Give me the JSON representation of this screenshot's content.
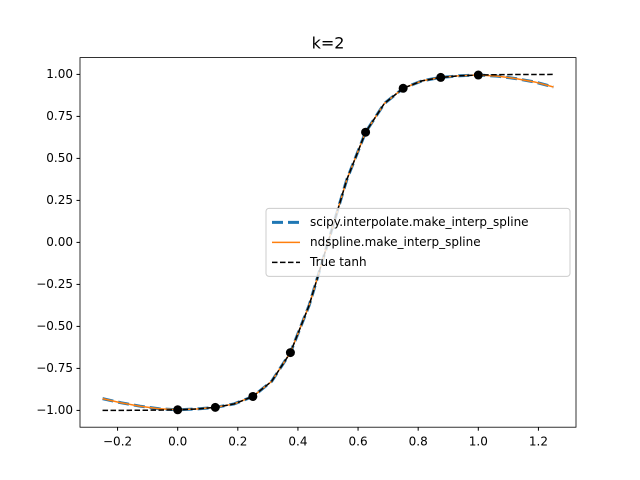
{
  "chart_data": {
    "type": "line",
    "title": "k=2",
    "x": [
      -0.25,
      -0.1875,
      -0.125,
      -0.0625,
      0,
      0.0625,
      0.125,
      0.1875,
      0.25,
      0.3125,
      0.375,
      0.4375,
      0.5,
      0.5625,
      0.625,
      0.6875,
      0.75,
      0.8125,
      0.875,
      0.9375,
      1,
      1.0625,
      1.125,
      1.1875,
      1.25
    ],
    "series": [
      {
        "name": "scipy.interpolate.make_interp_spline",
        "color": "#1f77b4",
        "style": "dashed",
        "width": 3,
        "values": [
          -0.93,
          -0.955,
          -0.975,
          -0.99,
          -0.9963,
          -0.9918,
          -0.982,
          -0.9615,
          -0.9172,
          -0.827,
          -0.6558,
          -0.3736,
          0,
          0.3736,
          0.6558,
          0.827,
          0.9172,
          0.9615,
          0.982,
          0.9918,
          0.9963,
          0.99,
          0.975,
          0.955,
          0.925
        ]
      },
      {
        "name": "ndspline.make_interp_spline",
        "color": "#ff7f0e",
        "style": "solid",
        "width": 1.5,
        "values": [
          -0.93,
          -0.955,
          -0.975,
          -0.99,
          -0.9963,
          -0.9918,
          -0.982,
          -0.9615,
          -0.9172,
          -0.827,
          -0.6558,
          -0.3736,
          0,
          0.3736,
          0.6558,
          0.827,
          0.9172,
          0.9615,
          0.982,
          0.9918,
          0.9963,
          0.99,
          0.975,
          0.955,
          0.925
        ]
      },
      {
        "name": "True tanh",
        "color": "#000000",
        "style": "dashed",
        "width": 1.5,
        "values": [
          -0.9998,
          -0.9996,
          -0.9992,
          -0.9983,
          -0.9963,
          -0.9918,
          -0.982,
          -0.9615,
          -0.9172,
          -0.827,
          -0.6558,
          -0.3736,
          0,
          0.3736,
          0.6558,
          0.827,
          0.9172,
          0.9615,
          0.982,
          0.9918,
          0.9963,
          0.9983,
          0.9992,
          0.9996,
          0.9998
        ]
      }
    ],
    "points": {
      "color": "#000000",
      "x": [
        0,
        0.125,
        0.25,
        0.375,
        0.625,
        0.75,
        0.875,
        1
      ],
      "y": [
        -0.9963,
        -0.982,
        -0.9172,
        -0.6558,
        0.6558,
        0.9172,
        0.982,
        0.9963
      ]
    },
    "xlim": [
      -0.325,
      1.325
    ],
    "ylim": [
      -1.1,
      1.1
    ],
    "xticks": [
      {
        "value": -0.2,
        "label": "−0.2"
      },
      {
        "value": 0,
        "label": "0.0"
      },
      {
        "value": 0.2,
        "label": "0.2"
      },
      {
        "value": 0.4,
        "label": "0.4"
      },
      {
        "value": 0.6,
        "label": "0.6"
      },
      {
        "value": 0.8,
        "label": "0.8"
      },
      {
        "value": 1,
        "label": "1.0"
      },
      {
        "value": 1.2,
        "label": "1.2"
      }
    ],
    "yticks": [
      {
        "value": -1,
        "label": "−1.00"
      },
      {
        "value": -0.75,
        "label": "−0.75"
      },
      {
        "value": -0.5,
        "label": "−0.50"
      },
      {
        "value": -0.25,
        "label": "−0.25"
      },
      {
        "value": 0,
        "label": "0.00"
      },
      {
        "value": 0.25,
        "label": "0.25"
      },
      {
        "value": 0.5,
        "label": "0.50"
      },
      {
        "value": 0.75,
        "label": "0.75"
      },
      {
        "value": 1,
        "label": "1.00"
      }
    ],
    "legend": "center right",
    "grid": false
  }
}
